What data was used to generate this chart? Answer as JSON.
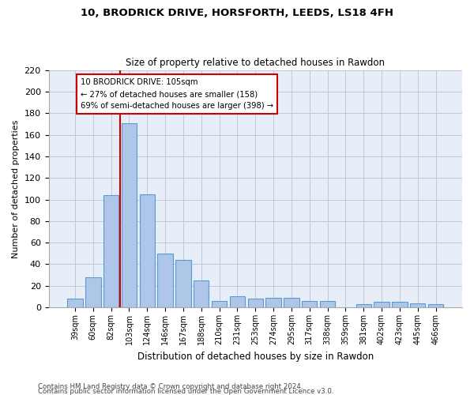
{
  "title1": "10, BRODRICK DRIVE, HORSFORTH, LEEDS, LS18 4FH",
  "title2": "Size of property relative to detached houses in Rawdon",
  "xlabel": "Distribution of detached houses by size in Rawdon",
  "ylabel": "Number of detached properties",
  "categories": [
    "39sqm",
    "60sqm",
    "82sqm",
    "103sqm",
    "124sqm",
    "146sqm",
    "167sqm",
    "188sqm",
    "210sqm",
    "231sqm",
    "253sqm",
    "274sqm",
    "295sqm",
    "317sqm",
    "338sqm",
    "359sqm",
    "381sqm",
    "402sqm",
    "423sqm",
    "445sqm",
    "466sqm"
  ],
  "values": [
    8,
    28,
    104,
    171,
    105,
    50,
    44,
    25,
    6,
    10,
    8,
    9,
    9,
    6,
    6,
    0,
    3,
    5,
    5,
    4,
    3
  ],
  "bar_color": "#aec6e8",
  "bar_edge_color": "#5b9bd5",
  "vline_color": "#cc0000",
  "vline_pos": 2.5,
  "annotation_text": "10 BRODRICK DRIVE: 105sqm\n← 27% of detached houses are smaller (158)\n69% of semi-detached houses are larger (398) →",
  "annotation_box_color": "#ffffff",
  "annotation_box_edge_color": "#cc0000",
  "background_color": "#ffffff",
  "plot_bg_color": "#e8eef7",
  "grid_color": "#c0c8d8",
  "footer1": "Contains HM Land Registry data © Crown copyright and database right 2024.",
  "footer2": "Contains public sector information licensed under the Open Government Licence v3.0.",
  "ylim": [
    0,
    220
  ],
  "yticks": [
    0,
    20,
    40,
    60,
    80,
    100,
    120,
    140,
    160,
    180,
    200,
    220
  ],
  "figwidth": 6.0,
  "figheight": 5.0,
  "dpi": 100
}
